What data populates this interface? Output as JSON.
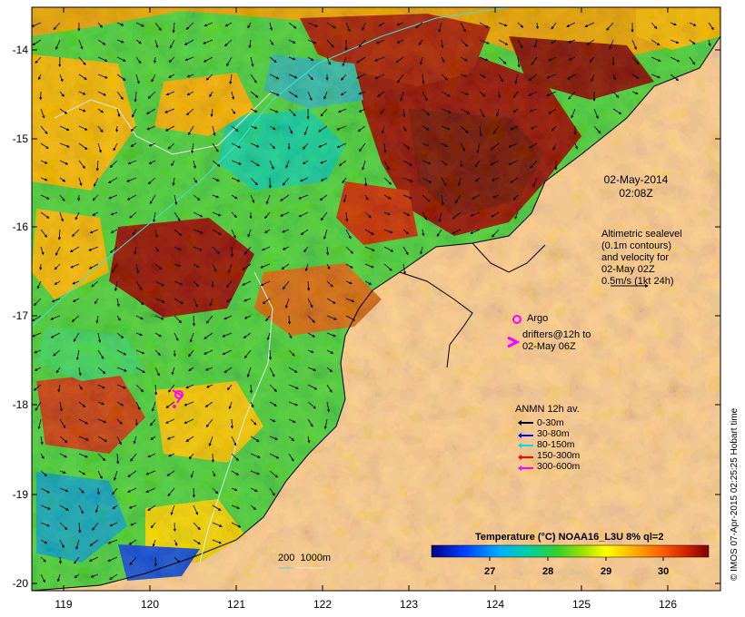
{
  "date_stamp": {
    "date": "02-May-2014",
    "time": "02:08Z"
  },
  "altimetry_note": [
    "Altimetric sealevel",
    "(0.1m contours)",
    "and velocity for",
    "02-May 02Z",
    "0.5m/s (1kt 24h)"
  ],
  "argo_label": "Argo",
  "drifters_note": [
    "drifters@12h to",
    "02-May 06Z"
  ],
  "anmn": {
    "title": "ANMN 12h av.",
    "items": [
      {
        "label": "0-30m",
        "color": "#000000"
      },
      {
        "label": "30-80m",
        "color": "#0000ff"
      },
      {
        "label": "80-150m",
        "color": "#00e0e0"
      },
      {
        "label": "150-300m",
        "color": "#ff0000"
      },
      {
        "label": "300-600m",
        "color": "#ff00ff"
      }
    ]
  },
  "isobath_label": "200  1000m",
  "colorbar": {
    "title": "Temperature (°C) NOAA16_L3U 8% ql=2",
    "ticks": [
      "27",
      "28",
      "29",
      "30"
    ]
  },
  "credit": "© IMOS 07-Apr-2015 02:25:25 Hobart time",
  "axes": {
    "x_ticks": [
      "119",
      "120",
      "121",
      "122",
      "123",
      "124",
      "125",
      "126"
    ],
    "y_ticks": [
      "-14",
      "-15",
      "-16",
      "-17",
      "-18",
      "-19",
      "-20"
    ]
  },
  "colors": {
    "land": "#fbc796",
    "hot": "#8b0000",
    "warm": "#f0a000",
    "mid": "#3ccb3c",
    "cool": "#00c8c8"
  }
}
